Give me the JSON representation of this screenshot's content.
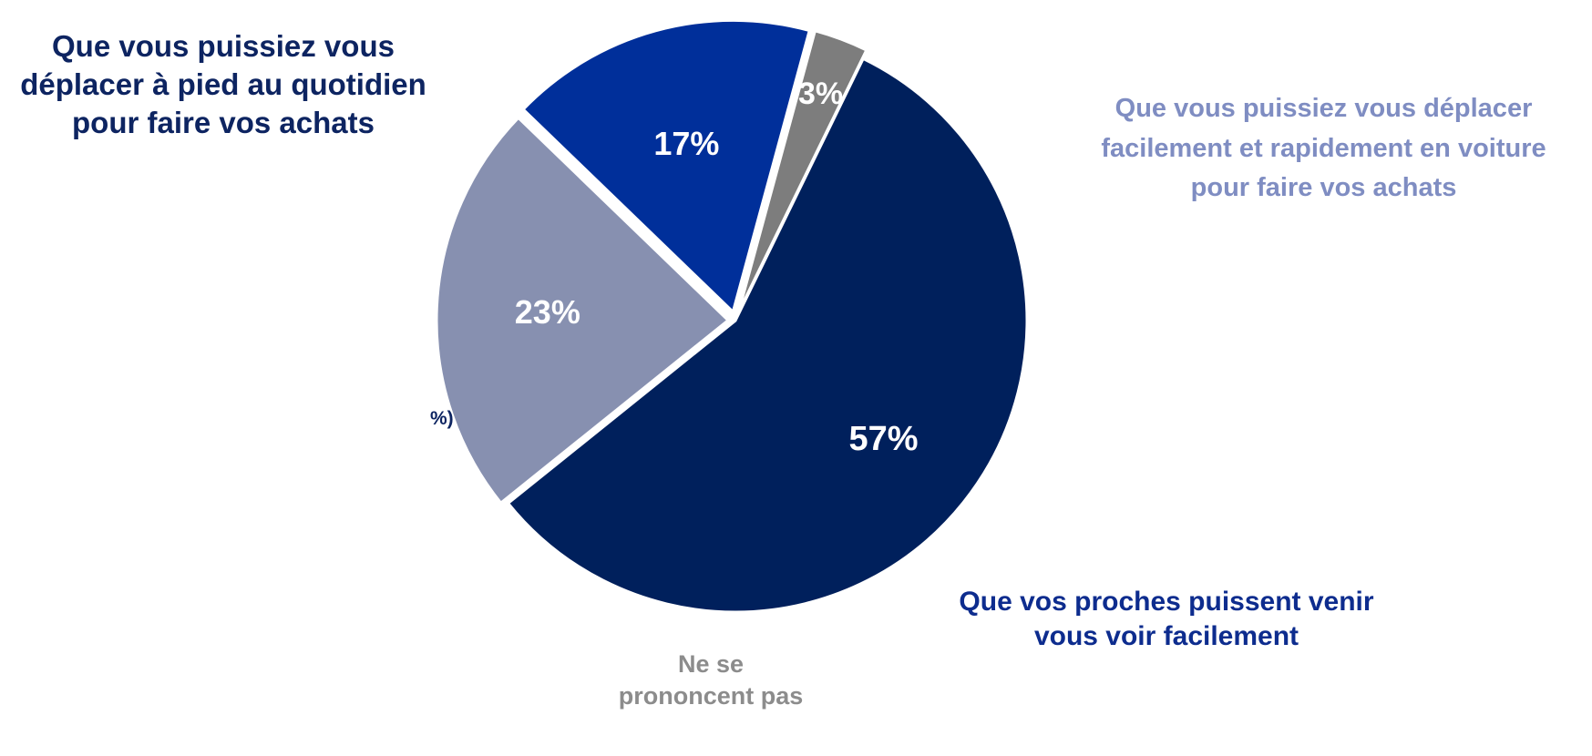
{
  "chart_data": {
    "type": "pie",
    "title": "",
    "slices": [
      {
        "label": "Que vous puissiez vous déplacer à pied au quotidien pour faire vos achats",
        "label_lines": [
          "Que vous puissiez vous",
          "déplacer à pied au quotidien",
          "pour faire vos achats"
        ],
        "value": 57,
        "value_label": "57%",
        "color": "#00205c"
      },
      {
        "label": "Que vous puissiez vous déplacer facilement et rapidement en voiture pour faire vos achats",
        "label_lines": [
          "Que vous puissiez vous déplacer",
          "facilement et rapidement en voiture",
          "pour faire vos achats"
        ],
        "value": 23,
        "value_label": "23%",
        "color": "#8790b0"
      },
      {
        "label": "Que vos proches puissent venir vous voir facilement",
        "label_lines": [
          "Que vos proches puissent venir",
          "vous voir facilement"
        ],
        "value": 17,
        "value_label": "17%",
        "color": "#002f9a"
      },
      {
        "label": "Ne se prononcent pas",
        "label_lines": [
          "Ne se",
          "prononcent pas"
        ],
        "value": 3,
        "value_label": "3%",
        "color": "#7d7d7d"
      }
    ],
    "start_angle_deg": 26,
    "stray_text": "%)"
  }
}
